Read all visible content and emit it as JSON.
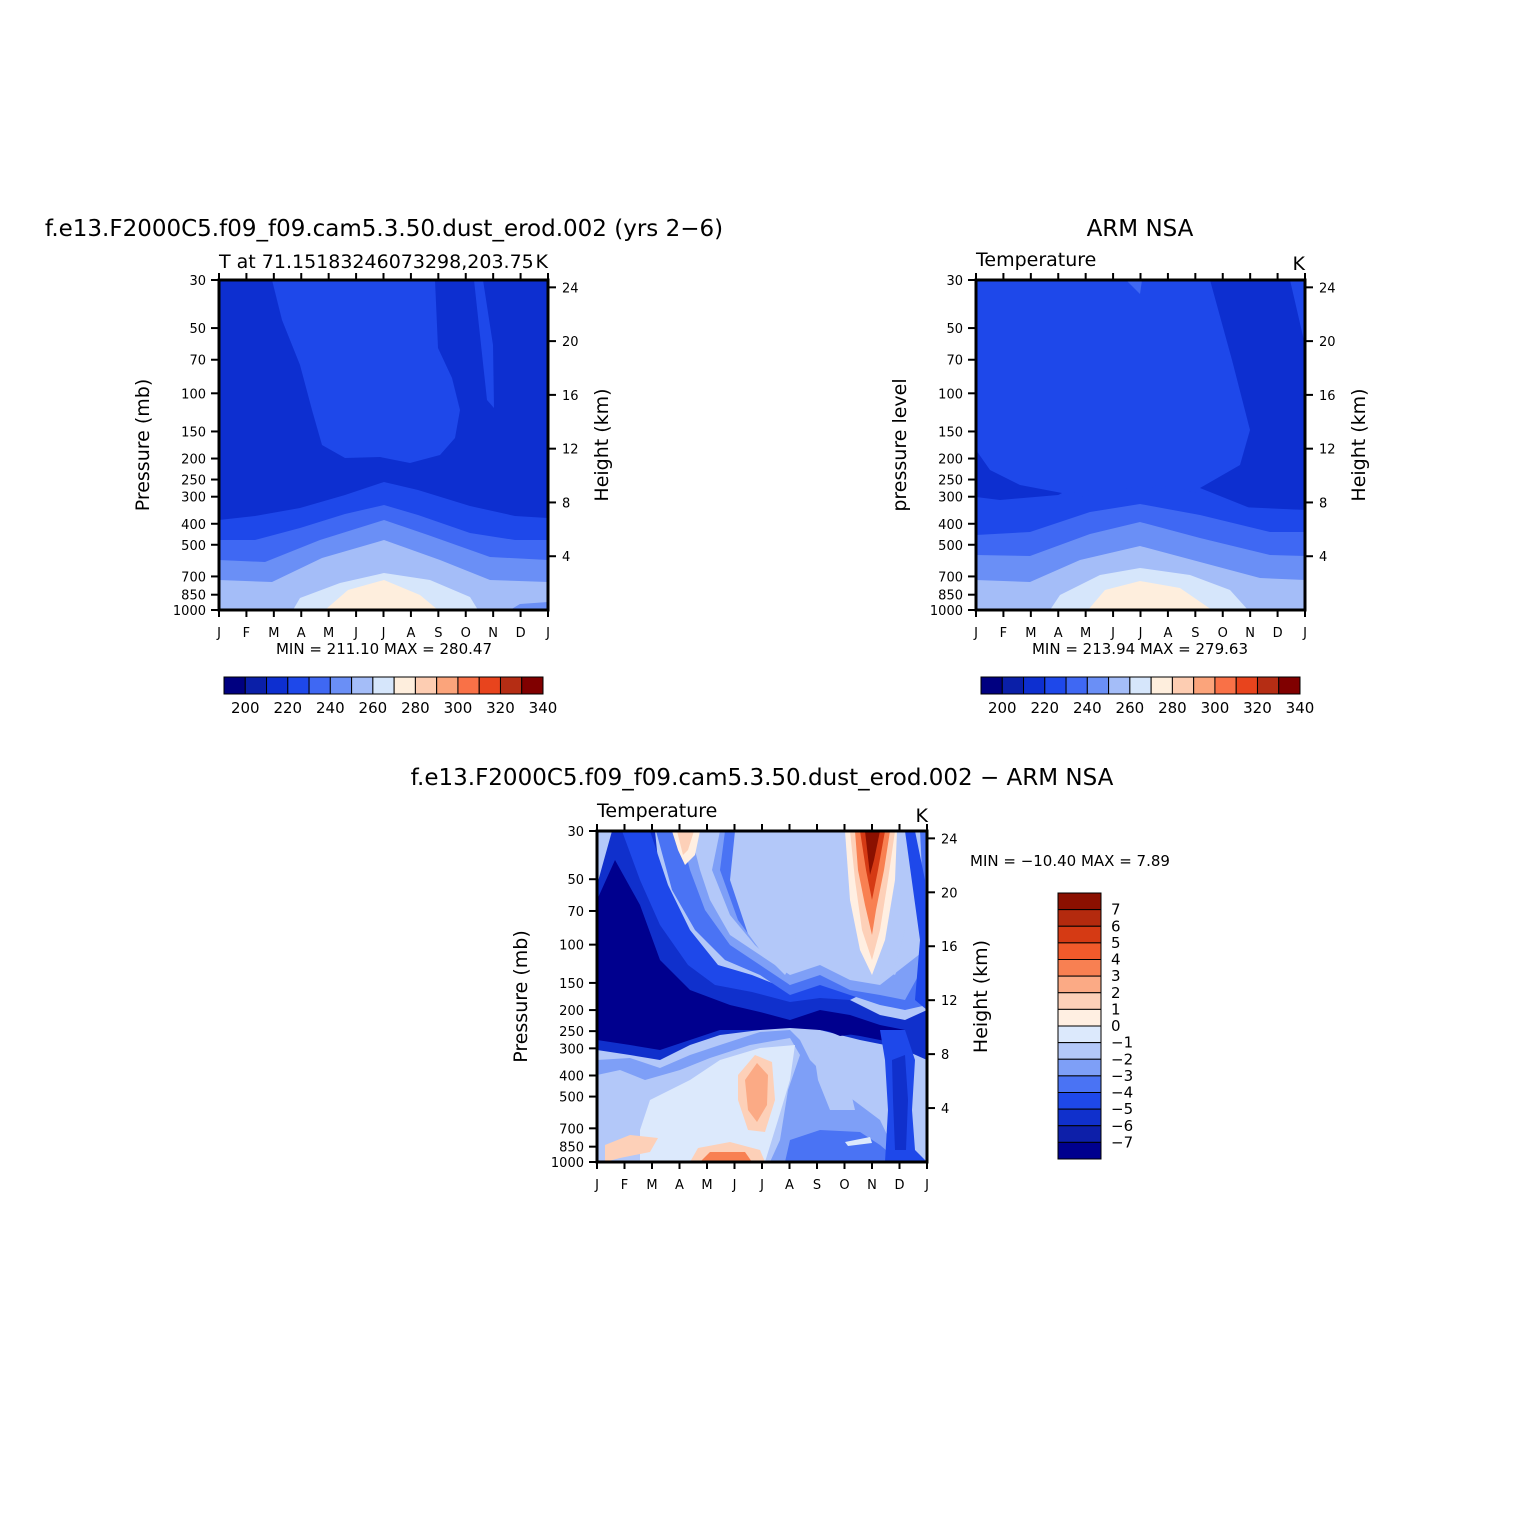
{
  "colors": {
    "temperature_levels": [
      "#000080",
      "#0a1fa8",
      "#0d2fd0",
      "#1e48ea",
      "#3f68f3",
      "#6a8ff6",
      "#a4bdf8",
      "#d6e6fb",
      "#feeedd",
      "#fdcdb2",
      "#fba47b",
      "#f97147",
      "#e8441d",
      "#b52d14",
      "#800000"
    ],
    "difference_levels": [
      "#00008e",
      "#0d1fa9",
      "#1030cc",
      "#1e48ea",
      "#4a73f4",
      "#7e9ff7",
      "#b3c8f9",
      "#dce9fc",
      "#ffefe2",
      "#fdd0b8",
      "#fbaa85",
      "#f88052",
      "#f25a2b",
      "#d53a14",
      "#b42a0e",
      "#8b1000"
    ],
    "frame": "#000000"
  },
  "chart_data": [
    {
      "type": "heatmap",
      "id": "model",
      "title": "f.e13.F2000C5.f09_f09.cam5.3.50.dust_erod.002 (yrs 2−6)",
      "subtitle_left": "T at 71.15183246073298,203.75",
      "subtitle_right": "K",
      "ylabel": "Pressure (mb)",
      "ylabel_right": "Height (km)",
      "x_ticks": [
        "J",
        "F",
        "M",
        "A",
        "M",
        "J",
        "J",
        "A",
        "S",
        "O",
        "N",
        "D",
        "J"
      ],
      "y_ticks": [
        "30",
        "50",
        "70",
        "100",
        "150",
        "200",
        "250",
        "300",
        "400",
        "500",
        "700",
        "850",
        "1000"
      ],
      "y_right_ticks": [
        "24",
        "20",
        "16",
        "12",
        "8",
        "4"
      ],
      "min_max_text": "MIN = 211.10 MAX = 280.47",
      "min": 211.1,
      "max": 280.47,
      "colorbar_labels": [
        "200",
        "220",
        "240",
        "260",
        "280",
        "300",
        "320",
        "340"
      ],
      "contour_levels": [
        195,
        200,
        205,
        210,
        215,
        220,
        225,
        230,
        235,
        240,
        245,
        250,
        255,
        260,
        265,
        270,
        275,
        280,
        285,
        290,
        295,
        300,
        305,
        310,
        315,
        320,
        325,
        330,
        335,
        340,
        345
      ]
    },
    {
      "type": "heatmap",
      "id": "obs",
      "title": "ARM NSA",
      "subtitle_left": "Temperature",
      "subtitle_right": "K",
      "ylabel": "pressure level",
      "ylabel_right": "Height (km)",
      "x_ticks": [
        "J",
        "F",
        "M",
        "A",
        "M",
        "J",
        "J",
        "A",
        "S",
        "O",
        "N",
        "D",
        "J"
      ],
      "y_ticks": [
        "30",
        "50",
        "70",
        "100",
        "150",
        "200",
        "250",
        "300",
        "400",
        "500",
        "700",
        "850",
        "1000"
      ],
      "y_right_ticks": [
        "24",
        "20",
        "16",
        "12",
        "8",
        "4"
      ],
      "min_max_text": "MIN = 213.94 MAX = 279.63",
      "min": 213.94,
      "max": 279.63,
      "colorbar_labels": [
        "200",
        "220",
        "240",
        "260",
        "280",
        "300",
        "320",
        "340"
      ]
    },
    {
      "type": "heatmap",
      "id": "diff",
      "title": "f.e13.F2000C5.f09_f09.cam5.3.50.dust_erod.002 − ARM NSA",
      "subtitle_left": "Temperature",
      "subtitle_right": "K",
      "ylabel": "Pressure (mb)",
      "ylabel_right": "Height (km)",
      "x_ticks": [
        "J",
        "F",
        "M",
        "A",
        "M",
        "J",
        "J",
        "A",
        "S",
        "O",
        "N",
        "D",
        "J"
      ],
      "y_ticks": [
        "30",
        "50",
        "70",
        "100",
        "150",
        "200",
        "250",
        "300",
        "400",
        "500",
        "700",
        "850",
        "1000"
      ],
      "y_right_ticks": [
        "24",
        "20",
        "16",
        "12",
        "8",
        "4"
      ],
      "min_max_text": "MIN = −10.40 MAX =    7.89",
      "min": -10.4,
      "max": 7.89,
      "colorbar_labels": [
        "7",
        "6",
        "5",
        "4",
        "3",
        "2",
        "1",
        "0",
        "−1",
        "−2",
        "−3",
        "−4",
        "−5",
        "−6",
        "−7"
      ]
    }
  ]
}
